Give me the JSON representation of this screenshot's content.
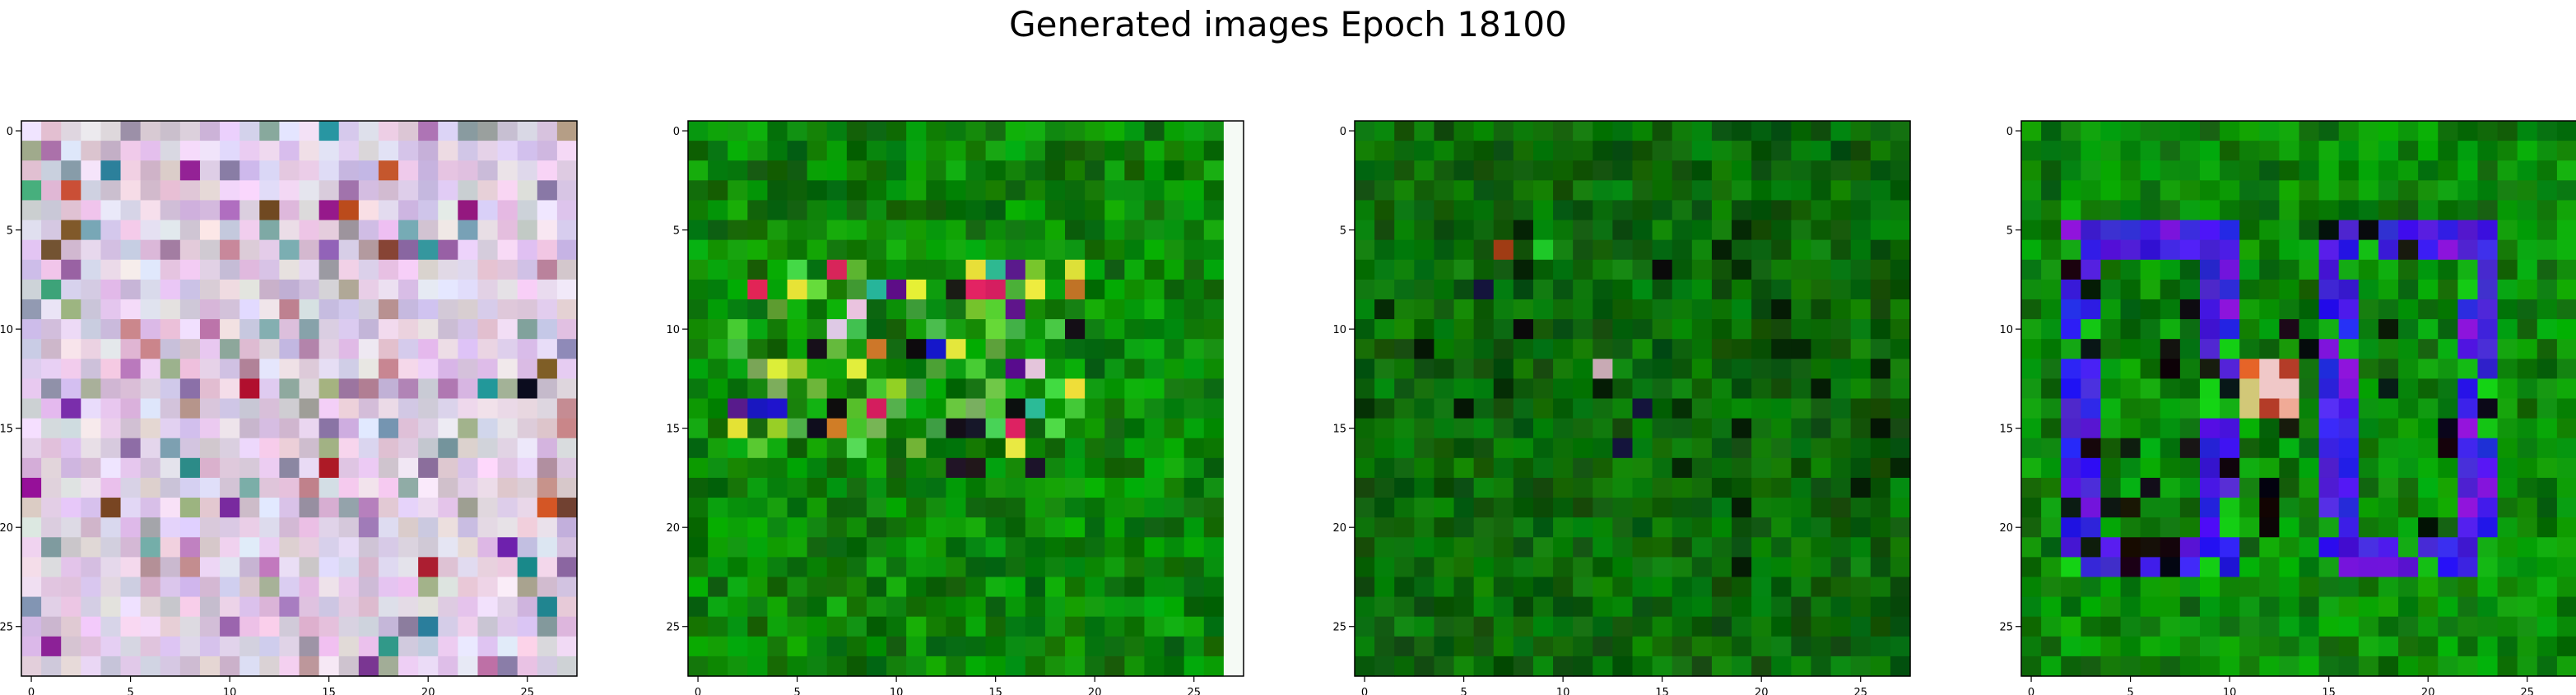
{
  "figure": {
    "title": "Generated images Epoch 18100"
  },
  "chart_data": [
    {
      "type": "heatmap",
      "panel": 1,
      "grid_size": [
        28,
        28
      ],
      "pixel_content": "random pastel RGB noise (pinks, lavenders, light greys, scattered saturated magenta, teal, brown, black pixels)",
      "xticks": [
        0,
        5,
        10,
        15,
        20,
        25
      ],
      "yticks": [
        0,
        5,
        10,
        15,
        20,
        25
      ],
      "xlim": [
        -0.5,
        27.5
      ],
      "ylim": [
        27.5,
        -0.5
      ],
      "grid": false
    },
    {
      "type": "heatmap",
      "panel": 2,
      "grid_size": [
        28,
        28
      ],
      "pixel_content": "dark/medium green noise with colorful patch around rows 7-16, cols 2-19; white column at col 27",
      "xticks": [
        0,
        5,
        10,
        15,
        20,
        25
      ],
      "yticks": [
        0,
        5,
        10,
        15,
        20,
        25
      ],
      "xlim": [
        -0.5,
        27.5
      ],
      "ylim": [
        27.5,
        -0.5
      ],
      "grid": false
    },
    {
      "type": "heatmap",
      "panel": 3,
      "grid_size": [
        28,
        28
      ],
      "pixel_content": "dark green noise with a few dark/colored pixels around rows 7-16, cols 6-15",
      "xticks": [
        0,
        5,
        10,
        15,
        20,
        25
      ],
      "yticks": [
        0,
        5,
        10,
        15,
        20,
        25
      ],
      "xlim": [
        -0.5,
        27.5
      ],
      "ylim": [
        27.5,
        -0.5
      ],
      "grid": false
    },
    {
      "type": "heatmap",
      "panel": 4,
      "grid_size": [
        28,
        28
      ],
      "pixel_content": "green background with two blue/violet square rings spanning rows 5-22 (cols 2-10 and cols 15-23), warm center pixels near row 12-14, col 12",
      "xticks": [
        0,
        5,
        10,
        15,
        20,
        25
      ],
      "yticks": [
        0,
        5,
        10,
        15,
        20,
        25
      ],
      "xlim": [
        -0.5,
        27.5
      ],
      "ylim": [
        27.5,
        -0.5
      ],
      "grid": false
    }
  ]
}
